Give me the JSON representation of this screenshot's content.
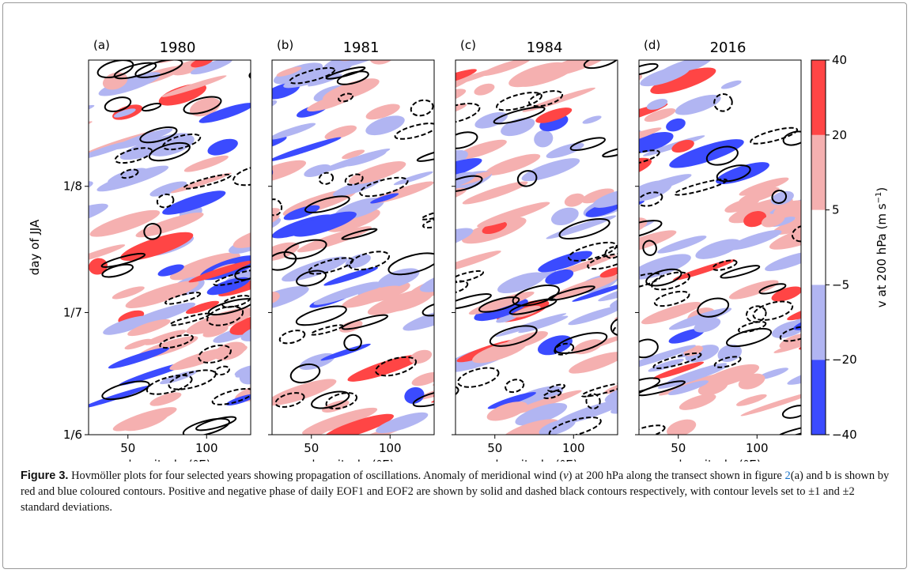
{
  "figure": {
    "panels": [
      {
        "label": "(a)",
        "title": "1980"
      },
      {
        "label": "(b)",
        "title": "1981"
      },
      {
        "label": "(c)",
        "title": "1984"
      },
      {
        "label": "(d)",
        "title": "2016"
      }
    ],
    "xlabel": "longitude (°E)",
    "ylabel": "day of JJA",
    "xlim": [
      25,
      128
    ],
    "xticks": [
      50,
      100
    ],
    "ylim": [
      0,
      92
    ],
    "yticks": [
      {
        "value": 0,
        "label": "1/6"
      },
      {
        "value": 30,
        "label": "1/7"
      },
      {
        "value": 61,
        "label": "1/8"
      }
    ],
    "colorbar": {
      "label": [
        "v at 200 hPa (m s",
        "−1",
        ")"
      ],
      "ticks": [
        {
          "value": -40,
          "label": "−40"
        },
        {
          "value": -20,
          "label": "−20"
        },
        {
          "value": -5,
          "label": "−5"
        },
        5,
        20,
        40
      ],
      "colors": [
        "#3b4bff",
        "#b1b5f2",
        "#ffffff",
        "#f5b0b0",
        "#ff4545"
      ]
    }
  },
  "caption": {
    "lead": "Figure 3.",
    "parts": [
      "Hovmöller plots for four selected years showing propagation of oscillations. Anomaly of meridional wind (",
      "v",
      ") at 200 hPa along the transect shown in figure ",
      "2",
      "(a) and b is shown by red and blue coloured contours. Positive and negative phase of daily EOF1 and EOF2 are shown by solid and dashed black contours respectively, with contour levels set to ±1 and ±2 standard deviations."
    ]
  }
}
